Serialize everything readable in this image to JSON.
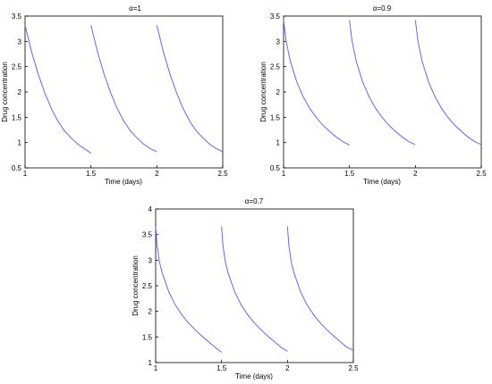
{
  "chart_data": [
    {
      "type": "line",
      "title": "α=1",
      "xlabel": "Time (days)",
      "ylabel": "Drug concentration",
      "xlim": [
        1,
        2.5
      ],
      "ylim": [
        0.5,
        3.5
      ],
      "xticks": [
        "1",
        "1.5",
        "2",
        "2.5"
      ],
      "yticks": [
        "0.5",
        "1",
        "1.5",
        "2",
        "2.5",
        "3",
        "3.5"
      ],
      "grid": false,
      "color": "#6666ee",
      "series": [
        {
          "x": [
            1.0,
            1.05,
            1.1,
            1.15,
            1.2,
            1.25,
            1.3,
            1.35,
            1.4,
            1.45,
            1.5
          ],
          "y": [
            3.32,
            2.79,
            2.35,
            1.98,
            1.67,
            1.42,
            1.23,
            1.09,
            0.97,
            0.88,
            0.79
          ]
        },
        {
          "x": [
            1.5,
            1.55,
            1.6,
            1.65,
            1.7,
            1.75,
            1.8,
            1.85,
            1.9,
            1.95,
            2.0
          ],
          "y": [
            3.32,
            2.79,
            2.35,
            1.98,
            1.67,
            1.42,
            1.23,
            1.09,
            0.97,
            0.88,
            0.82
          ]
        },
        {
          "x": [
            2.0,
            2.05,
            2.1,
            2.15,
            2.2,
            2.25,
            2.3,
            2.35,
            2.4,
            2.45,
            2.5
          ],
          "y": [
            3.32,
            2.79,
            2.35,
            1.98,
            1.67,
            1.42,
            1.23,
            1.09,
            0.97,
            0.88,
            0.82
          ]
        }
      ]
    },
    {
      "type": "line",
      "title": "α=0.9",
      "xlabel": "Time (days)",
      "ylabel": "Drug concentration",
      "xlim": [
        1,
        2.5
      ],
      "ylim": [
        0.5,
        3.5
      ],
      "xticks": [
        "1",
        "1.5",
        "2",
        "2.5"
      ],
      "yticks": [
        "0.5",
        "1",
        "1.5",
        "2",
        "2.5",
        "3",
        "3.5"
      ],
      "grid": false,
      "color": "#6666ee",
      "series": [
        {
          "x": [
            1.0,
            1.02,
            1.05,
            1.1,
            1.15,
            1.2,
            1.25,
            1.3,
            1.35,
            1.4,
            1.45,
            1.5
          ],
          "y": [
            3.42,
            3.0,
            2.62,
            2.2,
            1.9,
            1.67,
            1.49,
            1.34,
            1.22,
            1.11,
            1.02,
            0.95
          ]
        },
        {
          "x": [
            1.5,
            1.52,
            1.55,
            1.6,
            1.65,
            1.7,
            1.75,
            1.8,
            1.85,
            1.9,
            1.95,
            2.0
          ],
          "y": [
            3.42,
            3.0,
            2.62,
            2.2,
            1.9,
            1.67,
            1.49,
            1.34,
            1.22,
            1.11,
            1.02,
            0.96
          ]
        },
        {
          "x": [
            2.0,
            2.02,
            2.05,
            2.1,
            2.15,
            2.2,
            2.25,
            2.3,
            2.35,
            2.4,
            2.45,
            2.5
          ],
          "y": [
            3.42,
            3.0,
            2.62,
            2.2,
            1.9,
            1.67,
            1.49,
            1.34,
            1.22,
            1.11,
            1.02,
            0.96
          ]
        }
      ]
    },
    {
      "type": "line",
      "title": "α=0.7",
      "xlabel": "Time (days)",
      "ylabel": "Drug concentration",
      "xlim": [
        1,
        2.5
      ],
      "ylim": [
        1,
        4
      ],
      "xticks": [
        "1",
        "1.5",
        "2",
        "2.5"
      ],
      "yticks": [
        "1",
        "1.5",
        "2",
        "2.5",
        "3",
        "3.5",
        "4"
      ],
      "grid": false,
      "color": "#6666ee",
      "series": [
        {
          "x": [
            1.0,
            1.01,
            1.03,
            1.05,
            1.1,
            1.15,
            1.2,
            1.25,
            1.3,
            1.35,
            1.4,
            1.45,
            1.5
          ],
          "y": [
            3.66,
            3.3,
            2.95,
            2.75,
            2.38,
            2.12,
            1.93,
            1.77,
            1.64,
            1.52,
            1.41,
            1.3,
            1.2
          ]
        },
        {
          "x": [
            1.5,
            1.51,
            1.53,
            1.55,
            1.6,
            1.65,
            1.7,
            1.75,
            1.8,
            1.85,
            1.9,
            1.95,
            2.0
          ],
          "y": [
            3.66,
            3.3,
            2.95,
            2.75,
            2.38,
            2.12,
            1.93,
            1.77,
            1.64,
            1.52,
            1.41,
            1.3,
            1.22
          ]
        },
        {
          "x": [
            2.0,
            2.01,
            2.03,
            2.05,
            2.1,
            2.15,
            2.2,
            2.25,
            2.3,
            2.35,
            2.4,
            2.45,
            2.5
          ],
          "y": [
            3.66,
            3.3,
            2.95,
            2.75,
            2.38,
            2.12,
            1.93,
            1.77,
            1.64,
            1.52,
            1.41,
            1.3,
            1.24
          ]
        }
      ]
    }
  ]
}
